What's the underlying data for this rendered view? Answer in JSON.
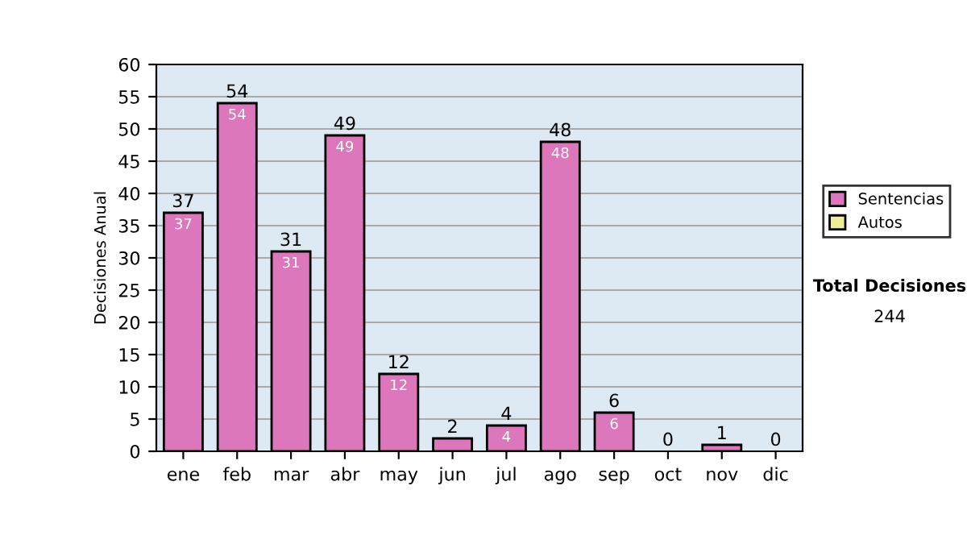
{
  "chart_data": {
    "type": "bar",
    "ylabel": "Decisiones Anual",
    "categories": [
      "ene",
      "feb",
      "mar",
      "abr",
      "may",
      "jun",
      "jul",
      "ago",
      "sep",
      "oct",
      "nov",
      "dic"
    ],
    "stacked": true,
    "series": [
      {
        "name": "Sentencias",
        "color": "#dd77bb",
        "values": [
          37,
          54,
          31,
          49,
          12,
          2,
          4,
          48,
          6,
          0,
          1,
          0
        ],
        "value_labels": [
          "37",
          "54",
          "31",
          "49",
          "12",
          null,
          "4",
          "48",
          "6",
          null,
          null,
          null
        ]
      },
      {
        "name": "Autos",
        "color": "#eeee99",
        "values": [
          0,
          0,
          0,
          0,
          0,
          0,
          0,
          0,
          0,
          0,
          0,
          0
        ]
      }
    ],
    "totals": [
      "37",
      "54",
      "31",
      "49",
      "12",
      "2",
      "4",
      "48",
      "6",
      "0",
      "1",
      "0"
    ],
    "ylim": [
      0,
      60
    ],
    "yticks": [
      0,
      5,
      10,
      15,
      20,
      25,
      30,
      35,
      40,
      45,
      50,
      55,
      60
    ],
    "grid": "y",
    "legend": "right",
    "annotations": [
      "Total Decisiones",
      "244"
    ]
  }
}
